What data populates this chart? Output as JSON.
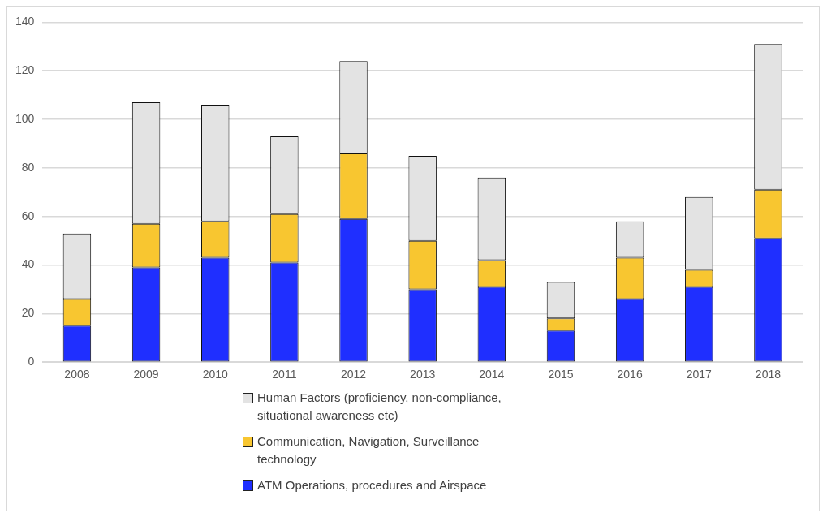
{
  "chart_data": {
    "type": "bar",
    "stacked": true,
    "categories": [
      "2008",
      "2009",
      "2010",
      "2011",
      "2012",
      "2013",
      "2014",
      "2015",
      "2016",
      "2017",
      "2018"
    ],
    "series": [
      {
        "name": "ATM Operations, procedures and Airspace",
        "color": "#1f2fff",
        "values": [
          15,
          39,
          43,
          41,
          59,
          30,
          31,
          13,
          26,
          31,
          51
        ]
      },
      {
        "name": "Communication, Navigation, Surveillance technology",
        "color": "#f8c630",
        "values": [
          11,
          18,
          15,
          20,
          27,
          20,
          11,
          5,
          17,
          7,
          20
        ]
      },
      {
        "name": "Human Factors (proficiency, non-compliance, situational awareness etc)",
        "color": "#e3e3e3",
        "values": [
          27,
          50,
          48,
          32,
          38,
          35,
          34,
          15,
          15,
          30,
          60
        ]
      }
    ],
    "ylim": [
      0,
      140
    ],
    "yticks": [
      0,
      20,
      40,
      60,
      80,
      100,
      120,
      140
    ],
    "grid": "y",
    "legend": "bottom"
  }
}
